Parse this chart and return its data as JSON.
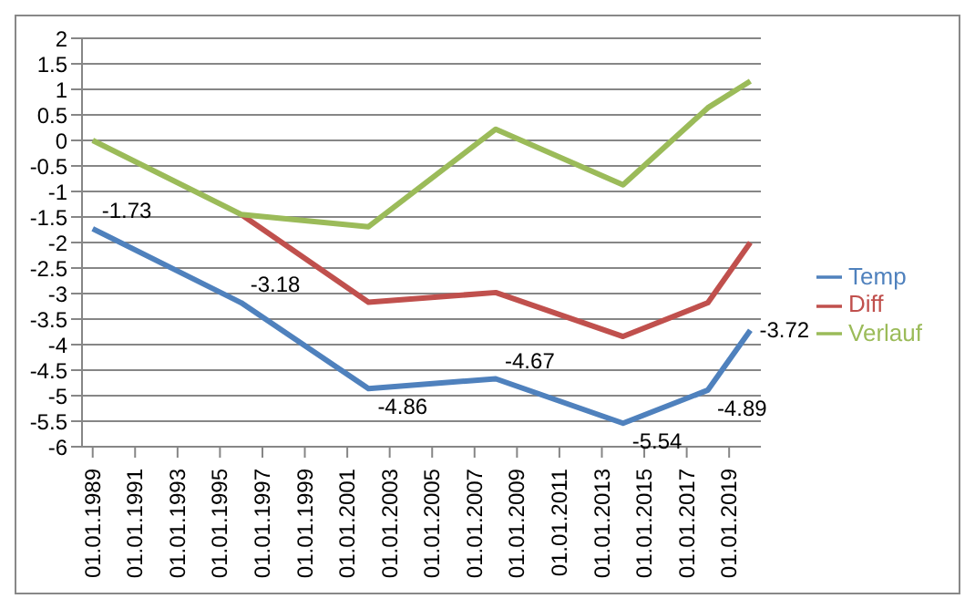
{
  "chart_data": {
    "type": "line",
    "x": [
      "1989-01-01",
      "1996-01-01",
      "2002-01-01",
      "2008-01-01",
      "2014-01-01",
      "2018-01-01",
      "2020-01-01"
    ],
    "series": [
      {
        "name": "Temp",
        "color": "#4f81bd",
        "values": [
          -1.73,
          -3.18,
          -4.86,
          -4.67,
          -5.54,
          -4.89,
          -3.72
        ],
        "value_labels": [
          "-1.73",
          "-3.18",
          "-4.86",
          "-4.67",
          "-5.54",
          "-4.89",
          "-3.72"
        ]
      },
      {
        "name": "Diff",
        "color": "#c0504d",
        "values": [
          null,
          -1.45,
          -3.17,
          -2.98,
          -3.84,
          -3.18,
          -2.0
        ]
      },
      {
        "name": "Verlauf",
        "color": "#9bbb59",
        "values": [
          0,
          -1.45,
          -1.69,
          0.22,
          -0.87,
          0.64,
          1.16
        ]
      }
    ],
    "xlim": [
      "1988-07-01",
      "2020-07-01"
    ],
    "xticks": [
      {
        "value": "1989-01-01",
        "label": "01.01.1989"
      },
      {
        "value": "1991-01-01",
        "label": "01.01.1991"
      },
      {
        "value": "1993-01-01",
        "label": "01.01.1993"
      },
      {
        "value": "1995-01-01",
        "label": "01.01.1995"
      },
      {
        "value": "1997-01-01",
        "label": "01.01.1997"
      },
      {
        "value": "1999-01-01",
        "label": "01.01.1999"
      },
      {
        "value": "2001-01-01",
        "label": "01.01.2001"
      },
      {
        "value": "2003-01-01",
        "label": "01.01.2003"
      },
      {
        "value": "2005-01-01",
        "label": "01.01.2005"
      },
      {
        "value": "2007-01-01",
        "label": "01.01.2007"
      },
      {
        "value": "2009-01-01",
        "label": "01.01.2009"
      },
      {
        "value": "2011-01-01",
        "label": "01.01.2011"
      },
      {
        "value": "2013-01-01",
        "label": "01.01.2013"
      },
      {
        "value": "2015-01-01",
        "label": "01.01.2015"
      },
      {
        "value": "2017-01-01",
        "label": "01.01.2017"
      },
      {
        "value": "2019-01-01",
        "label": "01.01.2019"
      }
    ],
    "ylim": [
      -6,
      2
    ],
    "yticks": [
      -6,
      -5.5,
      -5,
      -4.5,
      -4,
      -3.5,
      -3,
      -2.5,
      -2,
      -1.5,
      -1,
      -0.5,
      0,
      0.5,
      1,
      1.5,
      2
    ],
    "grid": "y",
    "legend": "right",
    "marker": "none",
    "line_style": "solid"
  }
}
